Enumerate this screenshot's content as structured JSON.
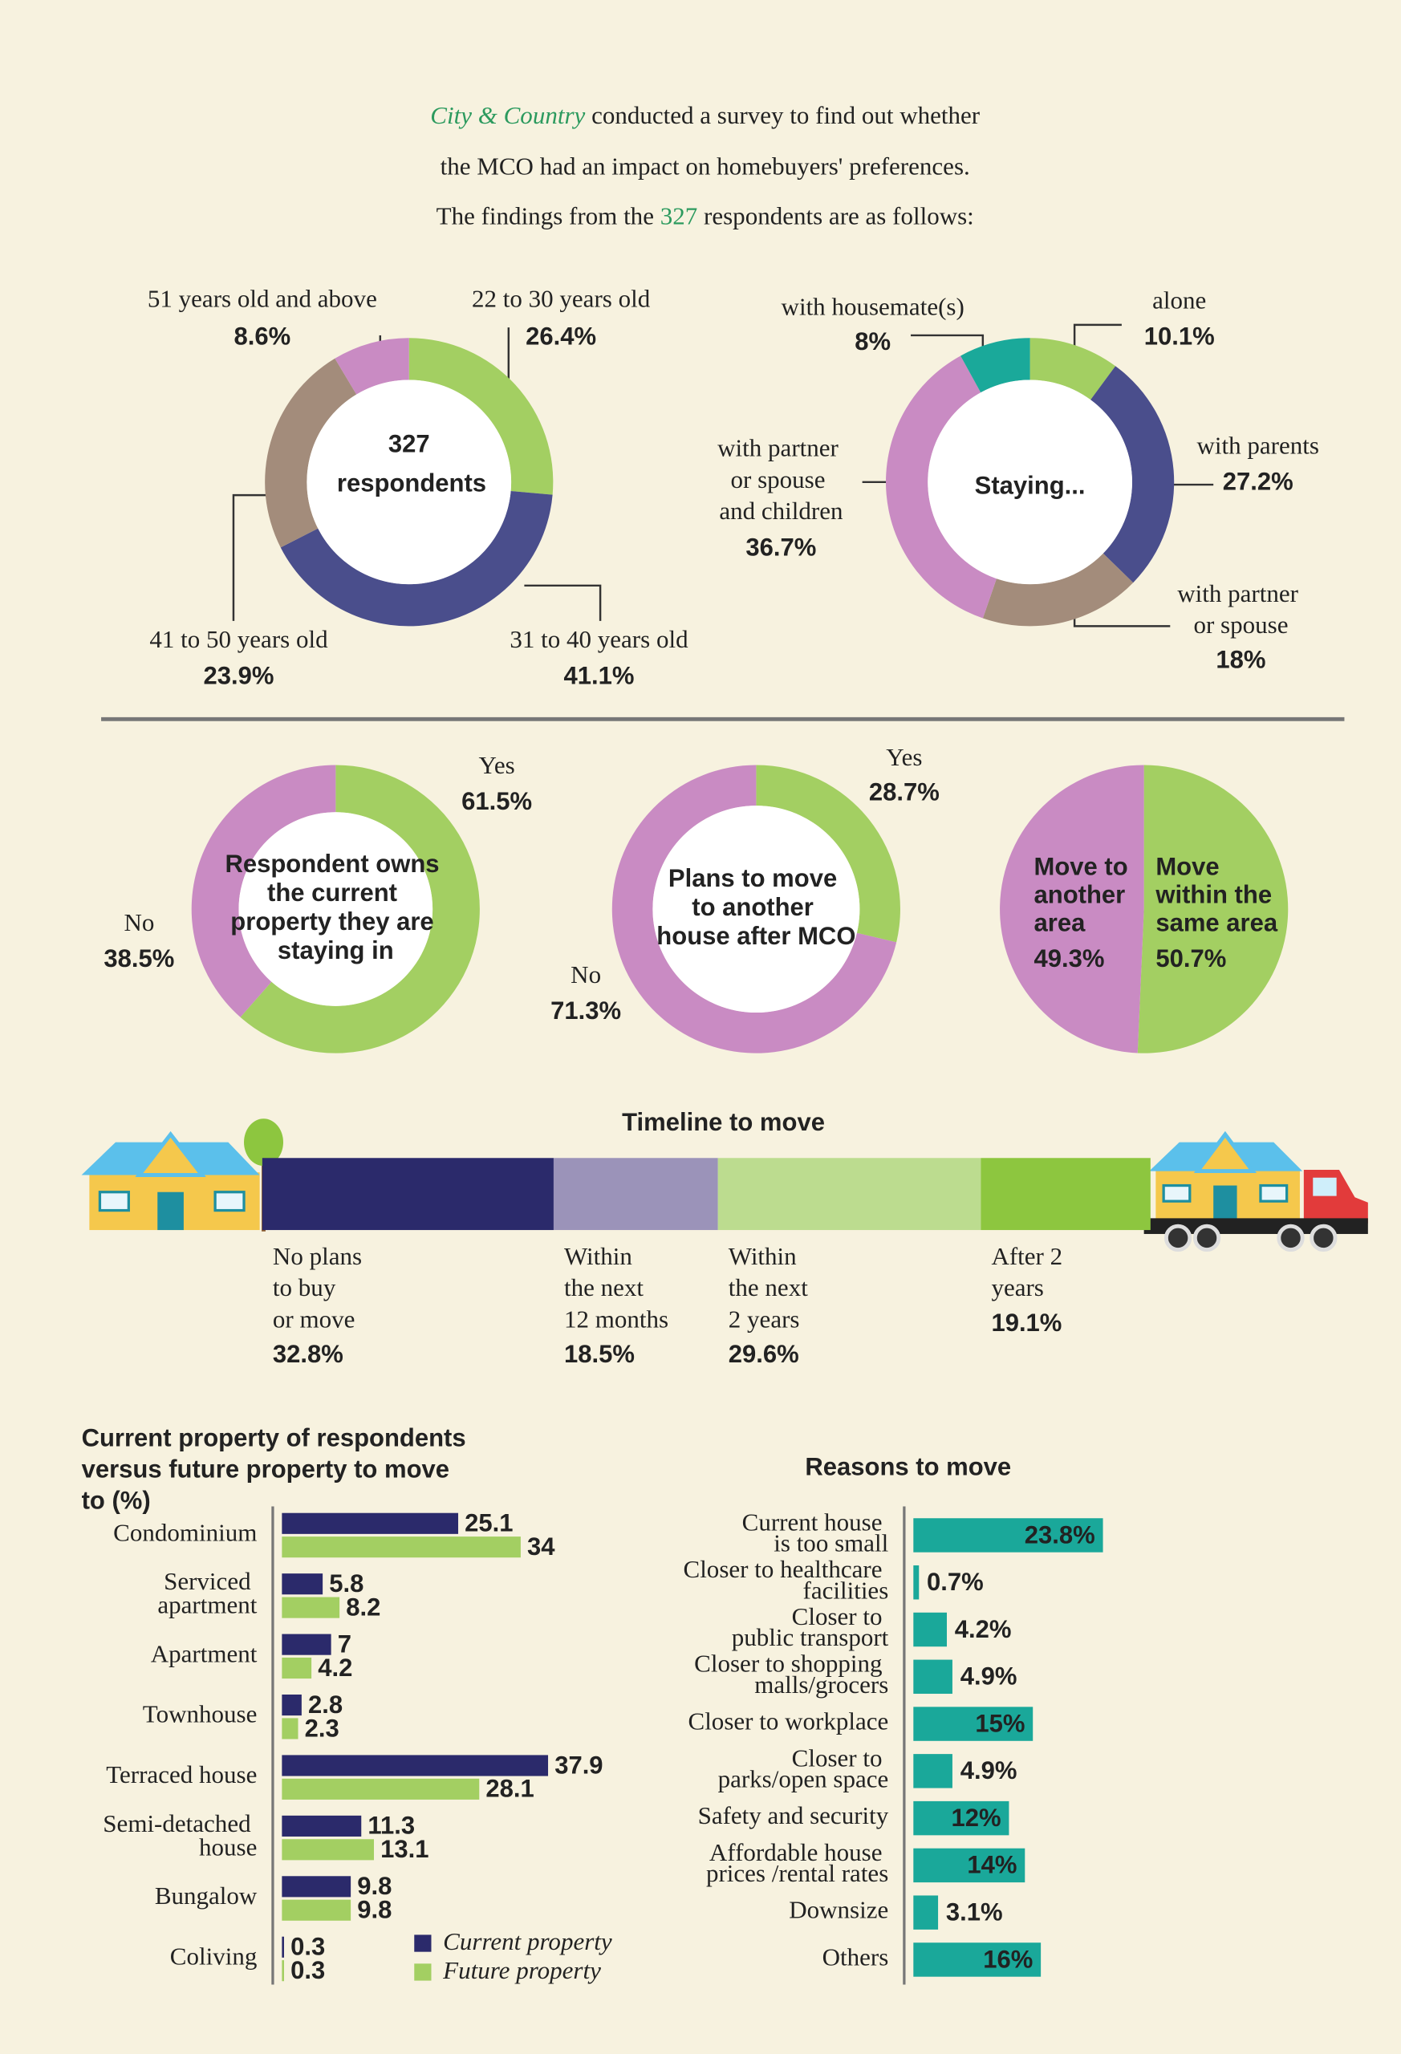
{
  "header": {
    "accent_color": "#2c9a5e",
    "title_lines": [
      [
        {
          "text": "City & Country",
          "accent": true
        },
        {
          "text": "conducted a survey to find out whether"
        }
      ],
      [
        {
          "text": "the MCO had an impact on homebuyers' preferences."
        }
      ],
      [
        {
          "text": "The findings from the"
        },
        {
          "text": "327",
          "accent": true
        },
        {
          "text": "respondents are as follows:"
        }
      ]
    ]
  },
  "chart_data": [
    {
      "type": "donut",
      "center_text": "327",
      "center_subtext": "respondents",
      "categories": [
        "22 to 30 years old",
        "31 to 40 years old",
        "41 to 50 years old",
        "51 years old and above"
      ],
      "values": [
        26.4,
        41.1,
        23.9,
        8.6
      ],
      "value_labels": [
        "26.4%",
        "41.1%",
        "23.9%",
        "8.6%"
      ],
      "colors": [
        "#a3cf62",
        "#4a4e8c",
        "#a38c7b",
        "#c98bc3"
      ]
    },
    {
      "type": "donut",
      "center_text": "Staying...",
      "categories": [
        "alone",
        "with parents",
        "with partner or spouse",
        "with partner or spouse and children",
        "with housemate(s)"
      ],
      "values": [
        10.1,
        27.2,
        18,
        36.7,
        8
      ],
      "value_labels": [
        "10.1%",
        "27.2%",
        "18%",
        "36.7%",
        "8%"
      ],
      "colors": [
        "#a3cf62",
        "#4a4e8c",
        "#a38c7b",
        "#c98bc3",
        "#1aa99a"
      ]
    },
    {
      "type": "donut",
      "center_text": "Respondent owns the current property they are staying in",
      "categories": [
        "Yes",
        "No"
      ],
      "values": [
        61.5,
        38.5
      ],
      "value_labels": [
        "61.5%",
        "38.5%"
      ],
      "colors": [
        "#a3cf62",
        "#c98bc3"
      ]
    },
    {
      "type": "donut",
      "center_text": "Plans to move to another house after MCO",
      "categories": [
        "Yes",
        "No"
      ],
      "values": [
        28.7,
        71.3
      ],
      "value_labels": [
        "28.7%",
        "71.3%"
      ],
      "colors": [
        "#a3cf62",
        "#c98bc3"
      ]
    },
    {
      "type": "pie",
      "categories": [
        "Move within the same area",
        "Move to another area"
      ],
      "values": [
        50.7,
        49.3
      ],
      "value_labels": [
        "50.7%",
        "49.3%"
      ],
      "colors": [
        "#a3cf62",
        "#c98bc3"
      ]
    },
    {
      "type": "stacked_bar",
      "title": "Timeline to move",
      "categories": [
        "No plans to buy or move",
        "Within the next 12 months",
        "Within the next 2 years",
        "After 2 years"
      ],
      "values": [
        32.8,
        18.5,
        29.6,
        19.1
      ],
      "value_labels": [
        "32.8%",
        "18.5%",
        "29.6%",
        "19.1%"
      ],
      "colors": [
        "#2b2a6b",
        "#9b93b9",
        "#bcdc8f",
        "#8dc63f"
      ]
    },
    {
      "type": "grouped_hbar",
      "title": "Current property of respondents versus future property to move to (%)",
      "categories": [
        "Condominium",
        "Serviced apartment",
        "Apartment",
        "Townhouse",
        "Terraced house",
        "Semi-detached house",
        "Bungalow",
        "Coliving"
      ],
      "series": [
        {
          "name": "Current property",
          "color": "#2b2a6b",
          "values": [
            25.1,
            5.8,
            7,
            2.8,
            37.9,
            11.3,
            9.8,
            0.3
          ]
        },
        {
          "name": "Future property",
          "color": "#a3cf62",
          "values": [
            34,
            8.2,
            4.2,
            2.3,
            28.1,
            13.1,
            9.8,
            0.3
          ]
        }
      ]
    },
    {
      "type": "hbar",
      "title": "Reasons to move",
      "categories": [
        "Current house is too small",
        "Closer to healthcare facilities",
        "Closer to public transport",
        "Closer to shopping malls/grocers",
        "Closer to workplace",
        "Closer to parks/open space",
        "Safety and security",
        "Affordable house prices /rental rates",
        "Downsize",
        "Others"
      ],
      "values": [
        23.8,
        0.7,
        4.2,
        4.9,
        15,
        4.9,
        12,
        14,
        3.1,
        16
      ],
      "value_labels": [
        "23.8%",
        "0.7%",
        "4.2%",
        "4.9%",
        "15%",
        "4.9%",
        "12%",
        "14%",
        "3.1%",
        "16%"
      ],
      "color": "#1aa89a"
    }
  ]
}
